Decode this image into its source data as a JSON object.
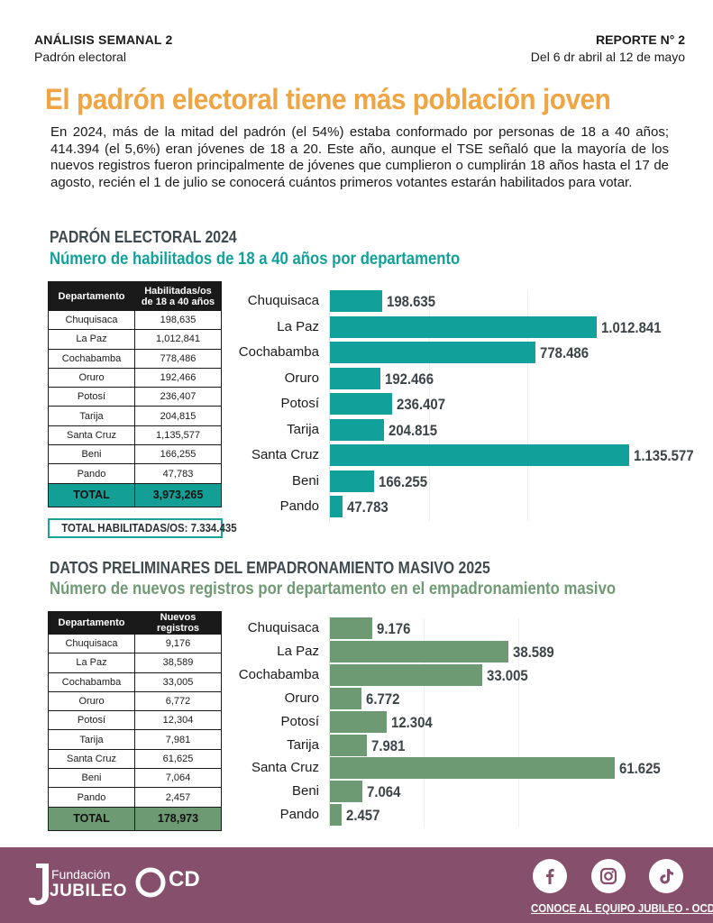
{
  "header": {
    "left_kicker": "ANÁLISIS SEMANAL 2",
    "left_sub": "Padrón electoral",
    "right_kicker": "REPORTE N° 2",
    "right_sub": "Del 6 dr abril al 12 de mayo"
  },
  "main_title": "El padrón electoral tiene más población joven",
  "intro": "En 2024, más de la mitad del padrón (el 54%) estaba conformado por personas de 18 a 40 años; 414.394 (el 5,6%) eran jóvenes de 18 a 20. Este año, aunque el TSE señaló que la mayoría de los nuevos registros fueron principalmente de jóvenes que cumplieron o cumplirán 18 años hasta el 17 de agosto, recién el 1 de julio se conocerá cuántos primeros votantes estarán habilitados para votar.",
  "section1": {
    "title": "PADRÓN ELECTORAL 2024",
    "subtitle": "Número de habilitados de 18 a 40 años por departamento",
    "table": {
      "headers": [
        "Departamento",
        "Habilitadas/os de 18 a 40 años"
      ],
      "rows": [
        [
          "Chuquisaca",
          "198,635"
        ],
        [
          "La Paz",
          "1,012,841"
        ],
        [
          "Cochabamba",
          "778,486"
        ],
        [
          "Oruro",
          "192,466"
        ],
        [
          "Potosí",
          "236,407"
        ],
        [
          "Tarija",
          "204,815"
        ],
        [
          "Santa Cruz",
          "1,135,577"
        ],
        [
          "Beni",
          "166,255"
        ],
        [
          "Pando",
          "47,783"
        ]
      ],
      "total_label": "TOTAL",
      "total_value": "3,973,265"
    },
    "total_habilitados": "TOTAL HABILITADAS/OS: 7.334.435"
  },
  "section2": {
    "title": "DATOS PRELIMINARES DEL EMPADRONAMIENTO MASIVO 2025",
    "subtitle": "Número de nuevos registros por departamento en el empadronamiento masivo",
    "table": {
      "headers": [
        "Departamento",
        "Nuevos registros"
      ],
      "rows": [
        [
          "Chuquisaca",
          "9,176"
        ],
        [
          "La Paz",
          "38,589"
        ],
        [
          "Cochabamba",
          "33,005"
        ],
        [
          "Oruro",
          "6,772"
        ],
        [
          "Potosí",
          "12,304"
        ],
        [
          "Tarija",
          "7,981"
        ],
        [
          "Santa Cruz",
          "61,625"
        ],
        [
          "Beni",
          "7,064"
        ],
        [
          "Pando",
          "2,457"
        ]
      ],
      "total_label": "TOTAL",
      "total_value": "178,973"
    }
  },
  "chart_data": [
    {
      "type": "bar",
      "orientation": "horizontal",
      "categories": [
        "Chuquisaca",
        "La Paz",
        "Cochabamba",
        "Oruro",
        "Potosí",
        "Tarija",
        "Santa Cruz",
        "Beni",
        "Pando"
      ],
      "values": [
        198635,
        1012841,
        778486,
        192466,
        236407,
        204815,
        1135577,
        166255,
        47783
      ],
      "value_labels": [
        "198.635",
        "1.012.841",
        "778.486",
        "192.466",
        "236.407",
        "204.815",
        "1.135.577",
        "166.255",
        "47.783"
      ],
      "color": "#12a19a",
      "xlim": [
        0,
        1135577
      ]
    },
    {
      "type": "bar",
      "orientation": "horizontal",
      "categories": [
        "Chuquisaca",
        "La Paz",
        "Cochabamba",
        "Oruro",
        "Potosí",
        "Tarija",
        "Santa Cruz",
        "Beni",
        "Pando"
      ],
      "values": [
        9176,
        38589,
        33005,
        6772,
        12304,
        7981,
        61625,
        7064,
        2457
      ],
      "value_labels": [
        "9.176",
        "38.589",
        "33.005",
        "6.772",
        "12.304",
        "7.981",
        "61.625",
        "7.064",
        "2.457"
      ],
      "color": "#6e9a73",
      "xlim": [
        0,
        61625
      ]
    }
  ],
  "footer": {
    "fundacion": "Fundación",
    "jubileo": "JUBILEO",
    "ocd": "CD",
    "social_icons": [
      "facebook-icon",
      "instagram-icon",
      "tiktok-icon"
    ],
    "cta": "CONOCE AL EQUIPO JUBILEO - OCD",
    "bg_color": "#86506c"
  }
}
